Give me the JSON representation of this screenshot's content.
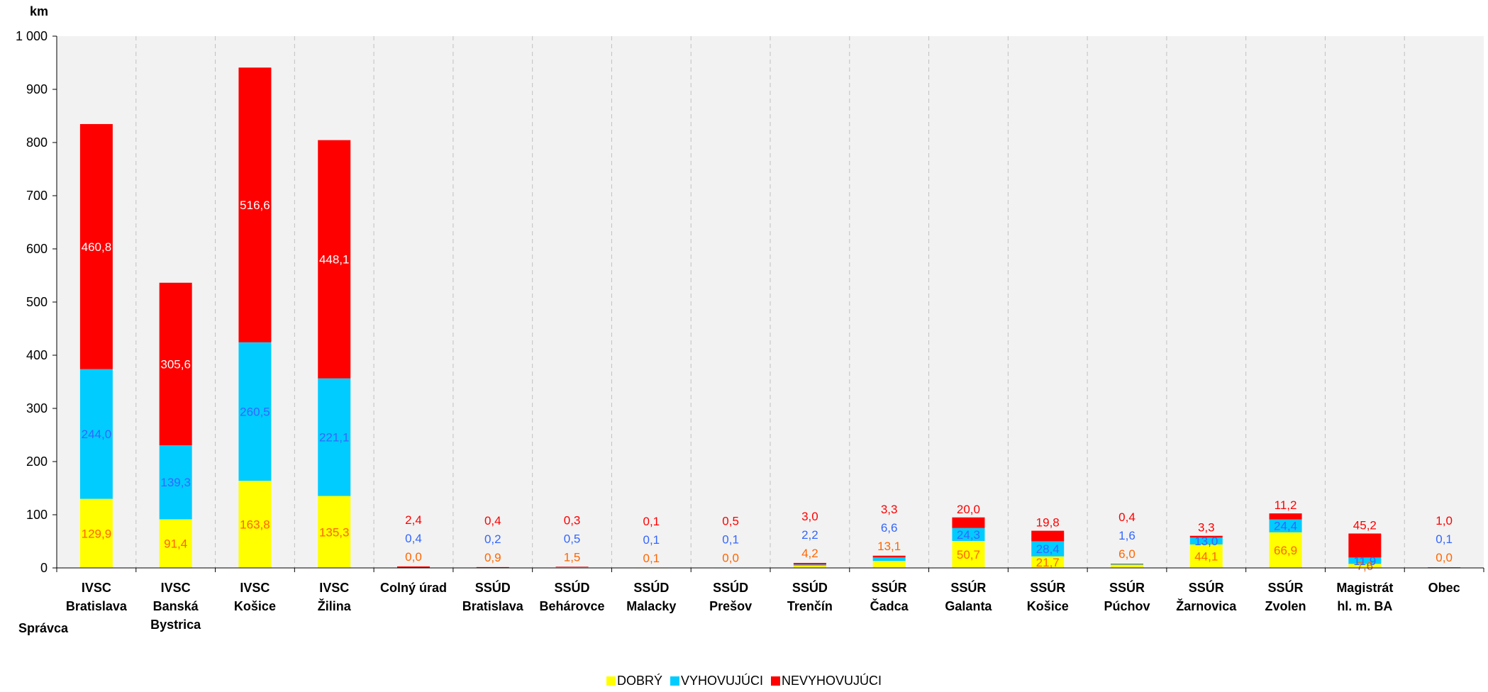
{
  "chart_data": {
    "type": "bar",
    "stacked": true,
    "title": "",
    "ylabel": "km",
    "xlabel": "Správca",
    "ylim": [
      0,
      1000
    ],
    "yticks": [
      0,
      100,
      200,
      300,
      400,
      500,
      600,
      700,
      800,
      900,
      1000
    ],
    "ytick_labels": [
      "0",
      "100",
      "200",
      "300",
      "400",
      "500",
      "600",
      "700",
      "800",
      "900",
      "1 000"
    ],
    "grid": "vertical-dashed",
    "legend_position": "bottom-center",
    "categories": [
      [
        "IVSC",
        "Bratislava"
      ],
      [
        "IVSC",
        "Banská",
        "Bystrica"
      ],
      [
        "IVSC",
        "Košice"
      ],
      [
        "IVSC",
        "Žilina"
      ],
      [
        "Colný úrad"
      ],
      [
        "SSÚD",
        "Bratislava"
      ],
      [
        "SSÚD",
        "Behárovce"
      ],
      [
        "SSÚD",
        "Malacky"
      ],
      [
        "SSÚD",
        "Prešov"
      ],
      [
        "SSÚD",
        "Trenčín"
      ],
      [
        "SSÚR",
        "Čadca"
      ],
      [
        "SSÚR",
        "Galanta"
      ],
      [
        "SSÚR",
        "Košice"
      ],
      [
        "SSÚR",
        "Púchov"
      ],
      [
        "SSÚR",
        "Žarnovica"
      ],
      [
        "SSÚR",
        "Zvolen"
      ],
      [
        "Magistrát",
        "hl. m. BA"
      ],
      [
        "Obec"
      ]
    ],
    "series": [
      {
        "name": "DOBRÝ",
        "color": "#FFFF00",
        "values": [
          129.9,
          91.4,
          163.8,
          135.3,
          0.0,
          0.9,
          1.5,
          0.1,
          0.0,
          4.2,
          13.1,
          50.7,
          21.7,
          6.0,
          44.1,
          66.9,
          7.6,
          0.0
        ],
        "labels": [
          "129,9",
          "91,4",
          "163,8",
          "135,3",
          "0,0",
          "0,9",
          "1,5",
          "0,1",
          "0,0",
          "4,2",
          "13,1",
          "50,7",
          "21,7",
          "6,0",
          "44,1",
          "66,9",
          "7,6",
          "0,0"
        ]
      },
      {
        "name": "VYHOVUJÚCI",
        "color": "#00CCFF",
        "values": [
          244.0,
          139.3,
          260.5,
          221.1,
          0.4,
          0.2,
          0.5,
          0.1,
          0.1,
          2.2,
          6.6,
          24.3,
          28.4,
          1.6,
          13.0,
          24.4,
          11.9,
          0.1
        ],
        "labels": [
          "244,0",
          "139,3",
          "260,5",
          "221,1",
          "0,4",
          "0,2",
          "0,5",
          "0,1",
          "0,1",
          "2,2",
          "6,6",
          "24,3",
          "28,4",
          "1,6",
          "13,0",
          "24,4",
          "11,9",
          "0,1"
        ]
      },
      {
        "name": "NEVYHOVUJÚCI",
        "color": "#FF0000",
        "values": [
          460.8,
          305.6,
          516.6,
          448.1,
          2.4,
          0.4,
          0.3,
          0.1,
          0.5,
          3.0,
          3.3,
          20.0,
          19.8,
          0.4,
          3.3,
          11.2,
          45.2,
          1.0
        ],
        "labels": [
          "460,8",
          "305,6",
          "516,6",
          "448,1",
          "2,4",
          "0,4",
          "0,3",
          "0,1",
          "0,5",
          "3,0",
          "3,3",
          "20,0",
          "19,8",
          "0,4",
          "3,3",
          "11,2",
          "45,2",
          "1,0"
        ]
      }
    ]
  }
}
